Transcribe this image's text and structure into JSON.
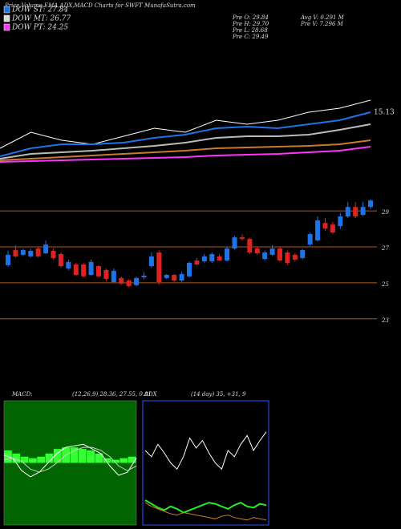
{
  "header": {
    "title": "Price,Volume,EMA,ADX,MACD Charts for SWFT MunafaSutra.com",
    "legend": [
      {
        "text": "DOW ST: 27.84",
        "color": "#1e73e8"
      },
      {
        "text": "DOW MT: 26.77",
        "color": "#d9d9d9"
      },
      {
        "text": "DOW PT: 24.25",
        "color": "#ff33ff"
      }
    ],
    "stats": [
      "Pre  O: 29.84",
      "Pre  H: 29.70",
      "Pre  L: 28.68",
      "Pre  C: 29.49"
    ],
    "stats2": [
      "Avg V: 0.291 M",
      "Pre  V: 7.296 M"
    ]
  },
  "chart_data": [
    {
      "type": "line",
      "annotation": "15.13",
      "ylim": [
        0,
        150
      ],
      "series": [
        {
          "color": "#ffffff",
          "values": [
            25,
            45,
            35,
            30,
            40,
            50,
            45,
            60,
            55,
            60,
            70,
            75,
            85
          ]
        },
        {
          "color": "#1e73e8",
          "values": [
            15,
            25,
            30,
            30,
            32,
            38,
            42,
            50,
            52,
            50,
            55,
            60,
            70
          ]
        },
        {
          "color": "#bbbbbb",
          "values": [
            12,
            18,
            20,
            22,
            25,
            28,
            32,
            38,
            40,
            40,
            42,
            48,
            55
          ]
        },
        {
          "color": "#c87a30",
          "values": [
            10,
            12,
            14,
            16,
            18,
            20,
            22,
            25,
            26,
            27,
            28,
            30,
            35
          ]
        },
        {
          "color": "#ff33ff",
          "values": [
            8,
            9,
            10,
            11,
            12,
            13,
            14,
            16,
            17,
            18,
            20,
            22,
            27
          ]
        }
      ]
    },
    {
      "type": "candlestick",
      "up_color": "#1e73e8",
      "down_color": "#dd2222",
      "grid_color": "#b8561c",
      "ylim": [
        22.9,
        30.7
      ],
      "yticks": [
        23,
        25,
        27,
        29
      ],
      "open": [
        25.98,
        26.82,
        26.56,
        26.47,
        26.91,
        26.64,
        26.78,
        26.6,
        25.8,
        26.02,
        26.02,
        25.44,
        25.93,
        25.71,
        25.04,
        25.27,
        25.13,
        24.87,
        25.31,
        25.93,
        26.69,
        25.27,
        25.44,
        25.13,
        25.36,
        26.24,
        26.2,
        26.2,
        26.47,
        26.24,
        26.91,
        27.53,
        27.44,
        26.91,
        26.33,
        26.56,
        26.91,
        26.69,
        26.56,
        26.38,
        27.13,
        27.36,
        28.33,
        28.24,
        28.16,
        28.69,
        29.22,
        28.78,
        29.22
      ],
      "high": [
        26.8,
        27.1,
        26.9,
        26.9,
        27.0,
        27.36,
        26.9,
        26.7,
        26.3,
        26.1,
        26.1,
        26.3,
        26.0,
        25.8,
        25.8,
        25.35,
        25.2,
        25.35,
        25.6,
        26.7,
        26.8,
        25.5,
        25.5,
        25.6,
        26.2,
        26.4,
        26.6,
        26.7,
        26.6,
        27.0,
        27.6,
        27.7,
        27.5,
        27.0,
        26.8,
        27.1,
        27.0,
        26.8,
        26.65,
        26.9,
        27.8,
        28.7,
        28.6,
        28.4,
        28.9,
        29.5,
        29.5,
        29.5,
        29.65
      ],
      "low": [
        25.9,
        26.4,
        26.5,
        26.4,
        26.4,
        26.6,
        26.3,
        25.85,
        25.7,
        25.4,
        25.3,
        25.4,
        25.3,
        25.1,
        25.0,
        24.9,
        24.75,
        24.8,
        25.2,
        25.85,
        24.9,
        25.2,
        25.05,
        25.05,
        25.3,
        25.95,
        26.1,
        26.1,
        26.2,
        26.2,
        26.85,
        27.35,
        26.6,
        26.55,
        26.25,
        26.5,
        26.2,
        26.0,
        26.2,
        26.3,
        27.05,
        27.3,
        27.9,
        27.7,
        28.0,
        28.6,
        28.6,
        28.7,
        29.1
      ],
      "close": [
        26.56,
        26.47,
        26.82,
        26.78,
        26.47,
        27.13,
        26.38,
        25.93,
        26.16,
        25.44,
        25.36,
        26.16,
        25.36,
        25.22,
        25.67,
        24.96,
        24.82,
        25.27,
        25.4,
        26.47,
        25.04,
        25.44,
        25.13,
        25.49,
        26.11,
        26.02,
        26.47,
        26.6,
        26.24,
        26.91,
        27.53,
        27.44,
        26.69,
        26.64,
        26.69,
        26.91,
        26.24,
        26.11,
        26.29,
        26.82,
        27.71,
        28.47,
        28.02,
        27.8,
        28.69,
        29.22,
        28.69,
        29.22,
        29.58
      ]
    },
    {
      "type": "macd",
      "title": "MACD:",
      "params": "(12,26,9) 28.36, 27.55, 0.81",
      "background": "#006400",
      "ylim": [
        -4,
        4
      ],
      "histogram": {
        "color": "#33ff33",
        "values": [
          0.8,
          0.6,
          0.4,
          0.3,
          0.4,
          0.6,
          0.9,
          1.0,
          1.0,
          0.9,
          0.8,
          0.6,
          0.3,
          0.2,
          0.3,
          0.4
        ]
      },
      "series": [
        {
          "color": "#ffffff",
          "values": [
            0.5,
            0.3,
            -0.5,
            -0.9,
            -0.6,
            0,
            0.6,
            1.0,
            1.1,
            1.2,
            0.9,
            0.6,
            -0.2,
            -0.8,
            -0.6,
            0.3
          ]
        },
        {
          "color": "#cccccc",
          "values": [
            0.2,
            0.3,
            0.1,
            -0.4,
            -0.6,
            -0.4,
            0,
            0.5,
            0.8,
            1.0,
            1.0,
            0.8,
            0.4,
            -0.2,
            -0.5,
            -0.2
          ]
        }
      ]
    },
    {
      "type": "adx",
      "title": "ADX",
      "params": "(14 day) 35, +31, 9",
      "border": "#3355ff",
      "ylim": [
        0,
        100
      ],
      "series": [
        {
          "color": "#ffffff",
          "values": [
            60,
            55,
            65,
            58,
            50,
            45,
            55,
            70,
            62,
            68,
            58,
            50,
            45,
            60,
            55,
            65,
            72,
            60,
            68,
            75
          ]
        },
        {
          "color": "#22ee22",
          "values": [
            20,
            17,
            14,
            12,
            15,
            13,
            10,
            12,
            14,
            16,
            18,
            17,
            15,
            13,
            16,
            18,
            15,
            14,
            17,
            16
          ]
        },
        {
          "color": "#c87a30",
          "values": [
            18,
            15,
            13,
            11,
            9,
            8,
            10,
            9,
            8,
            7,
            6,
            5,
            7,
            8,
            6,
            5,
            4,
            6,
            5,
            4
          ]
        }
      ]
    }
  ]
}
